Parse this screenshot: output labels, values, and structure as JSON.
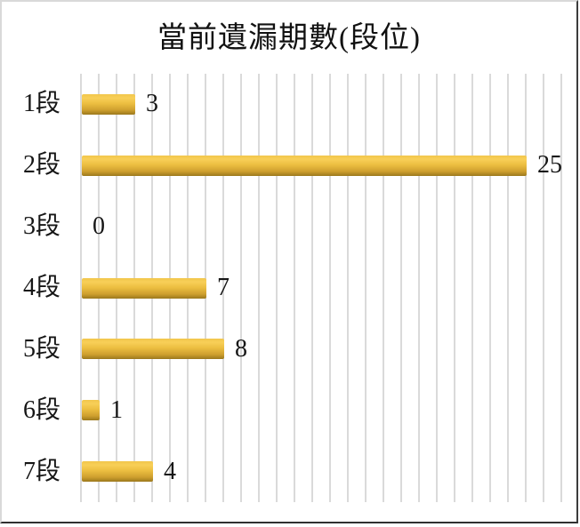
{
  "chart_data": {
    "type": "bar",
    "orientation": "horizontal",
    "title": "當前遺漏期數(段位)",
    "categories": [
      "1段",
      "2段",
      "3段",
      "4段",
      "5段",
      "6段",
      "7段"
    ],
    "values": [
      3,
      25,
      0,
      7,
      8,
      1,
      4
    ],
    "xlabel": "",
    "ylabel": "",
    "xlim": [
      0,
      27
    ],
    "grid": "vertical-gridlines-every-1-unit",
    "legend": "none",
    "value_labels_shown": true
  },
  "colors": {
    "bar_gradient_top": "#F1C64B",
    "bar_gradient_highlight": "#F8CF58",
    "bar_gradient_mid": "#EDBF41",
    "bar_gradient_low": "#CE9F2E",
    "bar_gradient_bottom": "#9B781C",
    "gridline": "#DADADA",
    "text": "#161616",
    "frame_light": "#D9D9D9",
    "frame_dark": "#303030",
    "background": "#FFFFFF"
  }
}
